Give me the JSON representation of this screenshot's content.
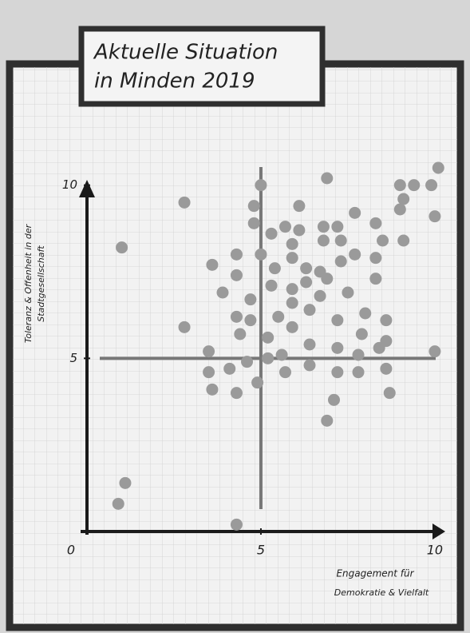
{
  "chart_data": {
    "type": "scatter",
    "title_lines": [
      "Aktuelle Situation",
      "in Minden 2019"
    ],
    "x_label_lines": [
      "Engagement für",
      "Demokratie & Vielfalt"
    ],
    "y_label_lines": [
      "Toleranz & Offenheit in der",
      "Stadtgesellschaft"
    ],
    "xlim": [
      0,
      10.3
    ],
    "ylim": [
      0,
      10.8
    ],
    "xticks": [
      0,
      5,
      10
    ],
    "yticks": [
      5,
      10
    ],
    "reference_x": 5,
    "reference_y": 5,
    "grid": true,
    "color": "#9a9a9a",
    "x": [
      1.0,
      1.1,
      0.9,
      2.8,
      2.8,
      4.3,
      3.6,
      3.9,
      3.5,
      3.5,
      3.6,
      4.3,
      4.3,
      4.3,
      4.1,
      4.3,
      4.4,
      4.7,
      4.7,
      4.6,
      4.8,
      4.8,
      5.0,
      5.0,
      5.3,
      5.3,
      5.4,
      5.2,
      5.2,
      4.9,
      5.7,
      5.9,
      5.9,
      6.1,
      6.1,
      5.5,
      5.6,
      5.7,
      5.9,
      5.9,
      5.9,
      6.3,
      6.3,
      6.4,
      6.4,
      6.4,
      6.7,
      6.7,
      6.8,
      6.8,
      6.9,
      6.9,
      7.2,
      7.3,
      7.3,
      7.5,
      7.2,
      7.2,
      7.2,
      7.1,
      6.9,
      7.7,
      7.7,
      7.8,
      7.8,
      7.9,
      8.0,
      8.3,
      8.3,
      8.3,
      8.5,
      8.4,
      8.6,
      8.6,
      8.6,
      8.7,
      9.0,
      9.1,
      9.0,
      9.1,
      9.4,
      9.9,
      10.1,
      10.0,
      10.0
    ],
    "y": [
      8.2,
      1.4,
      0.8,
      9.5,
      5.9,
      0.2,
      7.7,
      6.9,
      5.2,
      4.6,
      4.1,
      8.0,
      7.4,
      6.2,
      4.7,
      4.0,
      5.7,
      6.7,
      6.1,
      4.9,
      8.9,
      9.4,
      10.0,
      8.0,
      8.6,
      7.1,
      7.6,
      5.6,
      5.0,
      4.3,
      8.8,
      8.3,
      7.9,
      9.4,
      8.7,
      6.2,
      5.1,
      4.6,
      5.9,
      7.0,
      6.6,
      7.2,
      7.6,
      6.4,
      4.8,
      5.4,
      7.5,
      6.8,
      8.4,
      8.8,
      7.3,
      10.2,
      8.8,
      7.8,
      8.4,
      6.9,
      6.1,
      5.3,
      4.6,
      3.8,
      3.2,
      9.2,
      8.0,
      5.1,
      4.6,
      5.7,
      6.3,
      8.9,
      7.9,
      7.3,
      8.4,
      5.3,
      6.1,
      5.5,
      4.7,
      4.0,
      9.3,
      9.6,
      10.0,
      8.4,
      10.0,
      10.0,
      10.5,
      9.1,
      5.2
    ]
  }
}
